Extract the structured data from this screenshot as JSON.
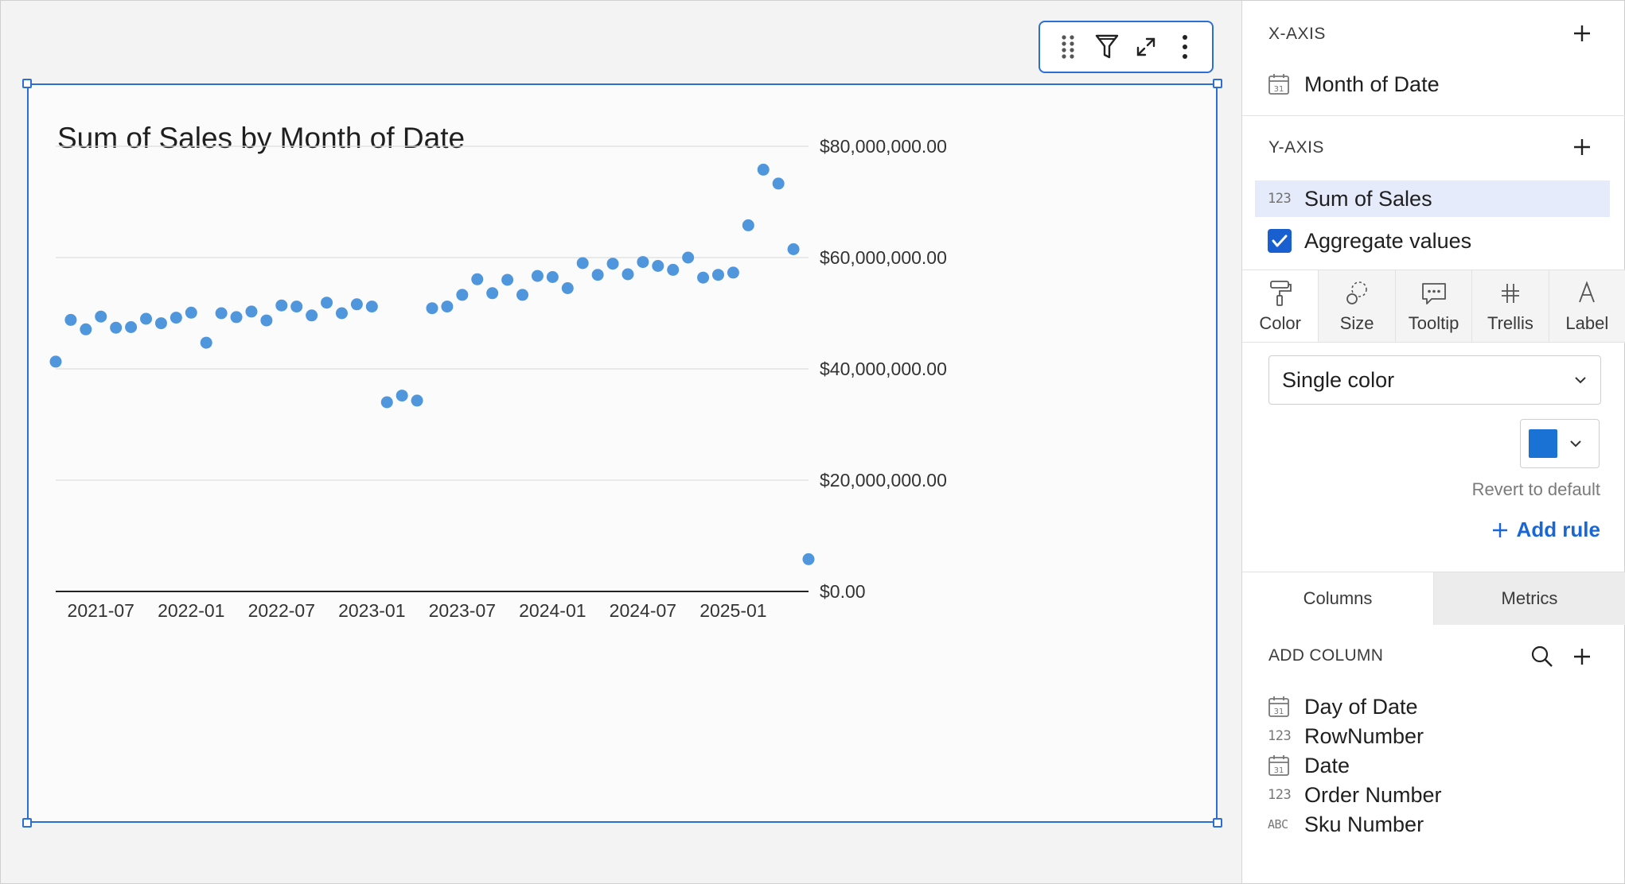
{
  "chart_data": {
    "type": "scatter",
    "title": "Sum of Sales by Month of Date",
    "xlabel": "",
    "ylabel": "",
    "x_tick_labels": [
      "2021-07",
      "2022-01",
      "2022-07",
      "2023-01",
      "2023-07",
      "2024-01",
      "2024-07",
      "2025-01"
    ],
    "y_tick_labels": [
      "$80,000,000.00",
      "$60,000,000.00",
      "$40,000,000.00",
      "$20,000,000.00",
      "$0.00"
    ],
    "ylim": [
      0,
      80000000
    ],
    "grid": true,
    "legend": "none",
    "color": "#5096dc",
    "series": [
      {
        "x": [
          "2021-04",
          "2021-05",
          "2021-06",
          "2021-07",
          "2021-08",
          "2021-09",
          "2021-10",
          "2021-11",
          "2021-12",
          "2022-01",
          "2022-02",
          "2022-03",
          "2022-04",
          "2022-05",
          "2022-06",
          "2022-07",
          "2022-08",
          "2022-09",
          "2022-10",
          "2022-11",
          "2022-12",
          "2023-01",
          "2023-02",
          "2023-03",
          "2023-04",
          "2023-05",
          "2023-06",
          "2023-07",
          "2023-08",
          "2023-09",
          "2023-10",
          "2023-11",
          "2023-12",
          "2024-01",
          "2024-02",
          "2024-03",
          "2024-04",
          "2024-05",
          "2024-06",
          "2024-07",
          "2024-08",
          "2024-09",
          "2024-10",
          "2024-11",
          "2024-12",
          "2025-01",
          "2025-02",
          "2025-03",
          "2025-04",
          "2025-05",
          "2025-06"
        ],
        "y": [
          41300000,
          48800000,
          47100000,
          49400000,
          47400000,
          47500000,
          49000000,
          48200000,
          49200000,
          50100000,
          44700000,
          50000000,
          49300000,
          50300000,
          48700000,
          51400000,
          51200000,
          49600000,
          51900000,
          50000000,
          51600000,
          51200000,
          34000000,
          35200000,
          34300000,
          50900000,
          51200000,
          53300000,
          56100000,
          53600000,
          56000000,
          53300000,
          56700000,
          56500000,
          54500000,
          59000000,
          56900000,
          58900000,
          57000000,
          59200000,
          58500000,
          57800000,
          60000000,
          56400000,
          56900000,
          57300000,
          65800000,
          75800000,
          73300000,
          61500000,
          5800000
        ]
      }
    ]
  },
  "toolbar": {
    "icons": [
      "drag-handle-icon",
      "filter-icon",
      "expand-icon",
      "more-icon"
    ]
  },
  "panel": {
    "x_axis": {
      "heading": "X-AXIS",
      "field": "Month of Date"
    },
    "y_axis": {
      "heading": "Y-AXIS",
      "field": "Sum of Sales",
      "aggregate_label": "Aggregate values",
      "aggregate_checked": true
    },
    "tabs": [
      "Color",
      "Size",
      "Tooltip",
      "Trellis",
      "Label"
    ],
    "color_mode": "Single color",
    "color_swatch": "#1a73d4",
    "revert_label": "Revert to default",
    "add_rule_label": "Add rule",
    "subtabs": [
      "Columns",
      "Metrics"
    ],
    "add_column_heading": "ADD COLUMN",
    "columns": [
      {
        "label": "Day of Date",
        "type": "date-icon"
      },
      {
        "label": "RowNumber",
        "type": "number-icon"
      },
      {
        "label": "Date",
        "type": "date-icon"
      },
      {
        "label": "Order Number",
        "type": "number-icon"
      },
      {
        "label": "Sku Number",
        "type": "text-icon"
      }
    ]
  }
}
